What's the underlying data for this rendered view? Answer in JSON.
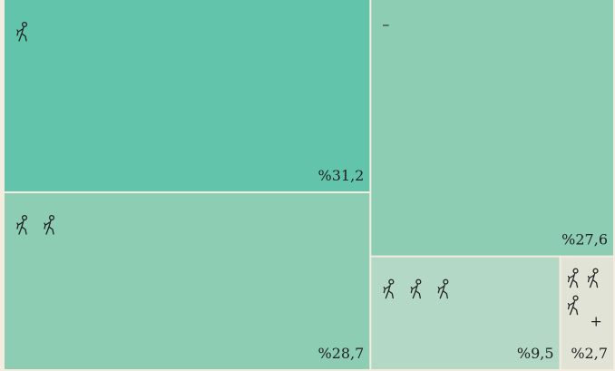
{
  "chart_data": {
    "type": "treemap",
    "categories": [
      null,
      null,
      "–",
      null,
      "+"
    ],
    "values": [
      31.2,
      28.7,
      27.6,
      9.5,
      2.7
    ],
    "value_labels": [
      "%31,2",
      "%28,7",
      "%27,6",
      "%9,5",
      "%2,7"
    ],
    "colors": [
      "#62c5ab",
      "#8ccdb4",
      "#8ccdb4",
      "#b4d8c6",
      "#e2e3d7"
    ]
  }
}
